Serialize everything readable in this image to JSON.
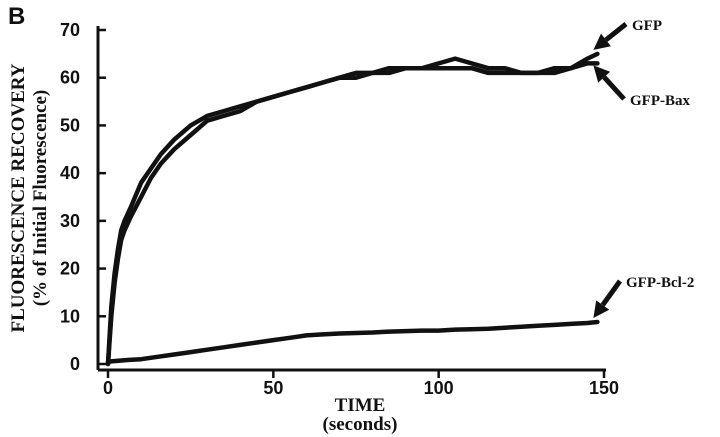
{
  "panel_label": "B",
  "chart_data": {
    "type": "line",
    "ylabel_line1": "FLUORESCENCE RECOVERY",
    "ylabel_line2": "(% of Initial Fluorescence)",
    "xlabel_line1": "TIME",
    "xlabel_line2": "(seconds)",
    "xlim": [
      0,
      150
    ],
    "ylim": [
      0,
      70
    ],
    "x_ticks": [
      0,
      50,
      100,
      150
    ],
    "y_ticks": [
      0,
      10,
      20,
      30,
      40,
      50,
      60,
      70
    ],
    "grid": false,
    "series": [
      {
        "name": "GFP",
        "x": [
          0,
          1,
          2,
          3,
          4,
          5,
          7,
          10,
          13,
          16,
          20,
          25,
          30,
          35,
          40,
          45,
          50,
          55,
          60,
          65,
          70,
          75,
          80,
          85,
          90,
          95,
          100,
          105,
          110,
          115,
          120,
          125,
          130,
          135,
          140,
          145,
          148
        ],
        "y": [
          0,
          12,
          19,
          24,
          28,
          30,
          33,
          38,
          41,
          44,
          47,
          50,
          52,
          53,
          54,
          55,
          56,
          57,
          58,
          59,
          60,
          61,
          61,
          62,
          62,
          62,
          63,
          64,
          63,
          62,
          62,
          61,
          61,
          62,
          62,
          64,
          65
        ]
      },
      {
        "name": "GFP-Bax",
        "x": [
          0,
          1,
          2,
          3,
          4,
          5,
          7,
          10,
          13,
          16,
          20,
          25,
          30,
          35,
          40,
          45,
          50,
          55,
          60,
          65,
          70,
          75,
          80,
          85,
          90,
          95,
          100,
          105,
          110,
          115,
          120,
          125,
          130,
          135,
          140,
          145,
          148
        ],
        "y": [
          0,
          10,
          17,
          22,
          26,
          28,
          31,
          35,
          39,
          42,
          45,
          48,
          51,
          52,
          53,
          55,
          56,
          57,
          58,
          59,
          60,
          60,
          61,
          61,
          62,
          62,
          62,
          62,
          62,
          61,
          61,
          61,
          61,
          61,
          62,
          63,
          63
        ]
      },
      {
        "name": "GFP-Bcl-2",
        "x": [
          0,
          5,
          10,
          15,
          20,
          25,
          30,
          35,
          40,
          45,
          50,
          55,
          60,
          65,
          70,
          75,
          80,
          85,
          90,
          95,
          100,
          105,
          110,
          115,
          120,
          125,
          130,
          135,
          140,
          145,
          148
        ],
        "y": [
          0.5,
          0.8,
          1,
          1.5,
          2,
          2.5,
          3,
          3.5,
          4,
          4.5,
          5,
          5.5,
          6,
          6.2,
          6.4,
          6.5,
          6.6,
          6.8,
          6.9,
          7,
          7,
          7.2,
          7.3,
          7.4,
          7.6,
          7.8,
          8,
          8.2,
          8.4,
          8.6,
          8.8
        ]
      }
    ]
  }
}
